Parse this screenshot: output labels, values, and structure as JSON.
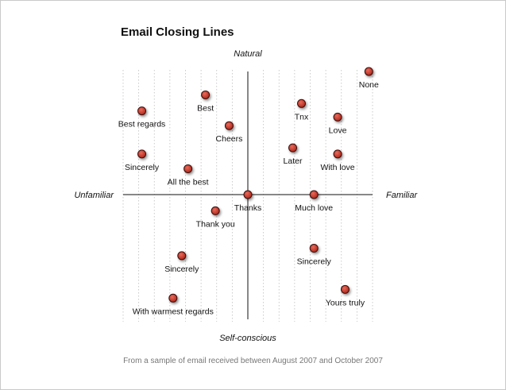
{
  "chart_data": {
    "type": "scatter",
    "title": "Email Closing Lines",
    "caption": "From a sample of email received between August 2007 and October 2007",
    "axes": {
      "x_negative_label": "Unfamiliar",
      "x_positive_label": "Familiar",
      "y_positive_label": "Natural",
      "y_negative_label": "Self-conscious",
      "xlim": [
        -10,
        10
      ],
      "ylim": [
        -10,
        10
      ],
      "grid": "vertical dotted"
    },
    "point_color": "#c0392b",
    "points": [
      {
        "label": "None",
        "x": 9.7,
        "y": 10
      },
      {
        "label": "Best",
        "x": -3.4,
        "y": 8.1
      },
      {
        "label": "Best regards",
        "x": -8.5,
        "y": 6.8
      },
      {
        "label": "Tnx",
        "x": 4.3,
        "y": 7.4
      },
      {
        "label": "Love",
        "x": 7.2,
        "y": 6.3
      },
      {
        "label": "Cheers",
        "x": -1.5,
        "y": 5.6
      },
      {
        "label": "Sincerely",
        "x": -8.5,
        "y": 3.3
      },
      {
        "label": "Later",
        "x": 3.6,
        "y": 3.8
      },
      {
        "label": "With love",
        "x": 7.2,
        "y": 3.3
      },
      {
        "label": "All the best",
        "x": -4.8,
        "y": 2.1
      },
      {
        "label": "Thanks",
        "x": 0,
        "y": 0
      },
      {
        "label": "Much love",
        "x": 5.3,
        "y": 0
      },
      {
        "label": "Thank you",
        "x": -2.6,
        "y": -1.3
      },
      {
        "label": "Sincerely",
        "x": 5.3,
        "y": -4.3
      },
      {
        "label": "Sincerely",
        "x": -5.3,
        "y": -4.9
      },
      {
        "label": "Yours truly",
        "x": 7.8,
        "y": -7.6
      },
      {
        "label": "With warmest regards",
        "x": -6,
        "y": -8.3
      }
    ]
  }
}
